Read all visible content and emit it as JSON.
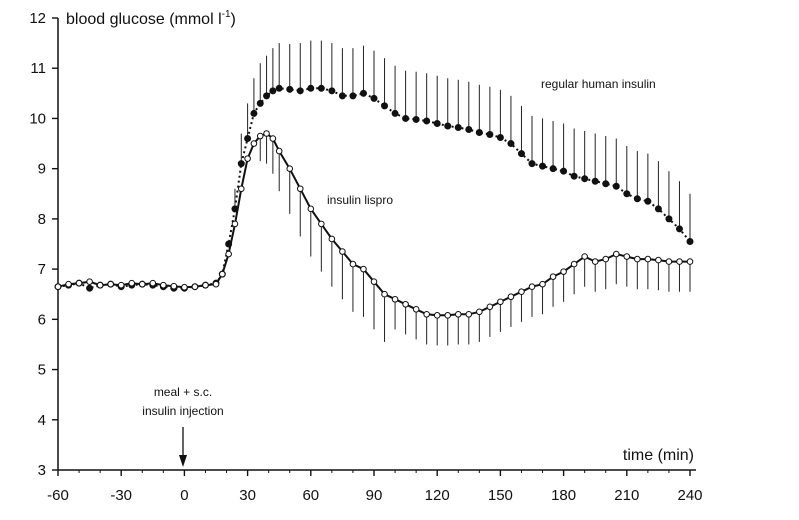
{
  "chart_data": {
    "type": "line",
    "ylabel": "blood glucose (mmol l",
    "ylabel_sup": "-1",
    "ylabel_close": ")",
    "xlabel": "time (min)",
    "xlim": [
      -60,
      240
    ],
    "ylim": [
      3,
      12
    ],
    "x_ticks": [
      -60,
      -30,
      0,
      30,
      60,
      90,
      120,
      150,
      180,
      210,
      240
    ],
    "y_ticks": [
      3,
      4,
      5,
      6,
      7,
      8,
      9,
      10,
      11,
      12
    ],
    "grid": false,
    "legend": "none (direct labels)",
    "annotations": {
      "event_line1": "meal + s.c.",
      "event_line2": "insulin injection",
      "event_x": 0
    },
    "series": [
      {
        "name": "regular human insulin",
        "marker": "filled",
        "line": "dotted",
        "error_bars": "upper",
        "x": [
          -60,
          -55,
          -50,
          -45,
          -40,
          -35,
          -30,
          -25,
          -20,
          -15,
          -10,
          -5,
          0,
          5,
          10,
          15,
          18,
          21,
          24,
          27,
          30,
          33,
          36,
          39,
          42,
          45,
          50,
          55,
          60,
          65,
          70,
          75,
          80,
          85,
          90,
          95,
          100,
          105,
          110,
          115,
          120,
          125,
          130,
          135,
          140,
          145,
          150,
          155,
          160,
          165,
          170,
          175,
          180,
          185,
          190,
          195,
          200,
          205,
          210,
          215,
          220,
          225,
          230,
          235,
          240
        ],
        "y": [
          6.65,
          6.68,
          6.72,
          6.62,
          6.68,
          6.7,
          6.65,
          6.68,
          6.7,
          6.68,
          6.65,
          6.62,
          6.62,
          6.65,
          6.68,
          6.72,
          6.9,
          7.5,
          8.2,
          9.1,
          9.6,
          10.1,
          10.3,
          10.45,
          10.55,
          10.6,
          10.58,
          10.55,
          10.6,
          10.6,
          10.55,
          10.45,
          10.45,
          10.5,
          10.4,
          10.25,
          10.1,
          10.0,
          9.98,
          9.95,
          9.9,
          9.85,
          9.82,
          9.78,
          9.72,
          9.68,
          9.62,
          9.5,
          9.3,
          9.1,
          9.05,
          9.0,
          8.95,
          8.85,
          8.8,
          8.75,
          8.7,
          8.65,
          8.5,
          8.4,
          8.35,
          8.2,
          8.0,
          7.8,
          7.55
        ],
        "err": [
          0,
          0,
          0,
          0,
          0,
          0,
          0,
          0,
          0,
          0,
          0,
          0,
          0,
          0,
          0,
          0,
          0,
          0,
          0.4,
          0.6,
          0.7,
          0.7,
          0.8,
          0.8,
          0.85,
          0.9,
          0.9,
          0.95,
          0.95,
          0.95,
          0.95,
          0.95,
          0.95,
          0.95,
          0.95,
          0.95,
          0.95,
          0.95,
          0.95,
          0.95,
          0.95,
          0.95,
          0.95,
          0.95,
          0.95,
          0.95,
          0.95,
          0.95,
          0.95,
          0.95,
          0.95,
          0.95,
          0.95,
          0.95,
          0.95,
          0.95,
          0.95,
          0.95,
          0.95,
          0.95,
          0.95,
          0.95,
          0.95,
          0.95,
          0.95
        ]
      },
      {
        "name": "insulin lispro",
        "marker": "open",
        "line": "solid",
        "error_bars": "lower",
        "x": [
          -60,
          -55,
          -50,
          -45,
          -40,
          -35,
          -30,
          -25,
          -20,
          -15,
          -10,
          -5,
          0,
          5,
          10,
          15,
          18,
          21,
          24,
          27,
          30,
          33,
          36,
          39,
          42,
          45,
          50,
          55,
          60,
          65,
          70,
          75,
          80,
          85,
          90,
          95,
          100,
          105,
          110,
          115,
          120,
          125,
          130,
          135,
          140,
          145,
          150,
          155,
          160,
          165,
          170,
          175,
          180,
          185,
          190,
          195,
          200,
          205,
          210,
          215,
          220,
          225,
          230,
          235,
          240
        ],
        "y": [
          6.65,
          6.7,
          6.72,
          6.75,
          6.68,
          6.7,
          6.68,
          6.72,
          6.7,
          6.72,
          6.68,
          6.66,
          6.64,
          6.65,
          6.68,
          6.7,
          6.9,
          7.3,
          7.9,
          8.6,
          9.2,
          9.5,
          9.65,
          9.7,
          9.6,
          9.35,
          9.0,
          8.6,
          8.2,
          7.9,
          7.6,
          7.35,
          7.1,
          7.0,
          6.75,
          6.5,
          6.4,
          6.3,
          6.2,
          6.1,
          6.08,
          6.08,
          6.1,
          6.1,
          6.15,
          6.25,
          6.35,
          6.45,
          6.55,
          6.65,
          6.7,
          6.85,
          6.95,
          7.1,
          7.25,
          7.15,
          7.2,
          7.3,
          7.25,
          7.2,
          7.2,
          7.18,
          7.15,
          7.15,
          7.15
        ],
        "err": [
          0,
          0,
          0,
          0,
          0,
          0,
          0,
          0,
          0,
          0,
          0,
          0,
          0,
          0,
          0,
          0,
          0,
          0,
          0,
          0,
          0,
          0,
          0.5,
          0.6,
          0.7,
          0.8,
          0.9,
          0.95,
          0.95,
          0.95,
          0.95,
          0.95,
          0.95,
          0.95,
          0.95,
          0.95,
          0.6,
          0.6,
          0.6,
          0.6,
          0.6,
          0.6,
          0.6,
          0.6,
          0.6,
          0.6,
          0.6,
          0.6,
          0.6,
          0.6,
          0.6,
          0.6,
          0.6,
          0.6,
          0.6,
          0.6,
          0.6,
          0.6,
          0.6,
          0.6,
          0.6,
          0.6,
          0.6,
          0.6,
          0.6
        ]
      }
    ]
  }
}
